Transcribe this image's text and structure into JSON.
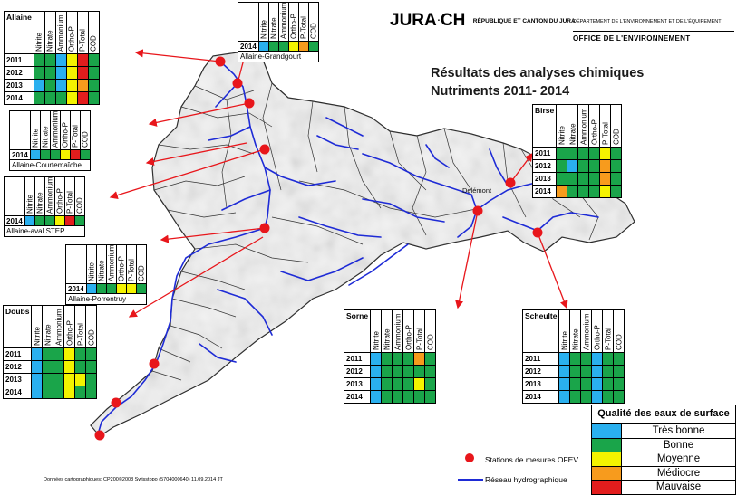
{
  "header": {
    "logo_jura": "JURA",
    "logo_ch": "CH",
    "republique": "RÉPUBLIQUE ET CANTON DU JURA",
    "department": "DÉPARTEMENT DE L'ENVIRONNEMENT ET DE L'ÉQUIPEMENT",
    "office": "OFFICE DE L'ENVIRONNEMENT"
  },
  "title": {
    "line1": "Résultats des analyses chimiques",
    "line2": "Nutriments 2011- 2014"
  },
  "map": {
    "town_label": "Delémont",
    "station_color": "#e8161b",
    "river_color": "#1e2bd6"
  },
  "columns": [
    "Nitrite",
    "Nitrate",
    "Ammonium",
    "Ortho-P",
    "P-Total",
    "COD"
  ],
  "colors": {
    "B": "#2ab0ef",
    "G": "#1aa54a",
    "Y": "#f4f300",
    "O": "#f79b1d",
    "R": "#e31d1d",
    "W": "#ffffff"
  },
  "tables": {
    "allaine": {
      "name": "Allaine",
      "rows": [
        {
          "year": "2011",
          "cells": [
            "G",
            "G",
            "B",
            "Y",
            "R",
            "G"
          ]
        },
        {
          "year": "2012",
          "cells": [
            "G",
            "G",
            "B",
            "Y",
            "R",
            "G"
          ]
        },
        {
          "year": "2013",
          "cells": [
            "B",
            "G",
            "B",
            "Y",
            "O",
            "G"
          ]
        },
        {
          "year": "2014",
          "cells": [
            "G",
            "G",
            "G",
            "Y",
            "R",
            "G"
          ]
        }
      ]
    },
    "grandgourt": {
      "name": "Allaine-Grandgourt",
      "rows": [
        {
          "year": "2014",
          "cells": [
            "B",
            "G",
            "G",
            "Y",
            "O",
            "G"
          ]
        }
      ]
    },
    "courtemaiche": {
      "name": "Allaine-Courtemaîche",
      "rows": [
        {
          "year": "2014",
          "cells": [
            "B",
            "G",
            "G",
            "Y",
            "R",
            "G"
          ]
        }
      ]
    },
    "avalstep": {
      "name": "Allaine-aval STEP",
      "rows": [
        {
          "year": "2014",
          "cells": [
            "B",
            "G",
            "G",
            "Y",
            "R",
            "G"
          ]
        }
      ]
    },
    "porrentruy": {
      "name": "Allaine-Porrentruy",
      "rows": [
        {
          "year": "2014",
          "cells": [
            "B",
            "G",
            "G",
            "Y",
            "Y",
            "G"
          ]
        }
      ]
    },
    "birse": {
      "name": "Birse",
      "rows": [
        {
          "year": "2011",
          "cells": [
            "G",
            "G",
            "G",
            "G",
            "Y",
            "G"
          ]
        },
        {
          "year": "2012",
          "cells": [
            "G",
            "B",
            "G",
            "G",
            "O",
            "G"
          ]
        },
        {
          "year": "2013",
          "cells": [
            "G",
            "G",
            "G",
            "G",
            "O",
            "G"
          ]
        },
        {
          "year": "2014",
          "cells": [
            "O",
            "G",
            "G",
            "G",
            "Y",
            "G"
          ]
        }
      ]
    },
    "doubs": {
      "name": "Doubs",
      "rows": [
        {
          "year": "2011",
          "cells": [
            "B",
            "G",
            "G",
            "Y",
            "G",
            "G"
          ]
        },
        {
          "year": "2012",
          "cells": [
            "B",
            "G",
            "G",
            "Y",
            "G",
            "G"
          ]
        },
        {
          "year": "2013",
          "cells": [
            "B",
            "G",
            "G",
            "Y",
            "Y",
            "G"
          ]
        },
        {
          "year": "2014",
          "cells": [
            "B",
            "G",
            "G",
            "Y",
            "G",
            "G"
          ]
        }
      ]
    },
    "sorne": {
      "name": "Sorne",
      "rows": [
        {
          "year": "2011",
          "cells": [
            "B",
            "G",
            "G",
            "G",
            "O",
            "G"
          ]
        },
        {
          "year": "2012",
          "cells": [
            "B",
            "G",
            "G",
            "G",
            "G",
            "G"
          ]
        },
        {
          "year": "2013",
          "cells": [
            "B",
            "G",
            "G",
            "G",
            "Y",
            "G"
          ]
        },
        {
          "year": "2014",
          "cells": [
            "B",
            "G",
            "G",
            "G",
            "G",
            "G"
          ]
        }
      ]
    },
    "scheulte": {
      "name": "Scheulte",
      "rows": [
        {
          "year": "2011",
          "cells": [
            "B",
            "G",
            "G",
            "B",
            "G",
            "G"
          ]
        },
        {
          "year": "2012",
          "cells": [
            "B",
            "G",
            "G",
            "B",
            "G",
            "G"
          ]
        },
        {
          "year": "2013",
          "cells": [
            "B",
            "G",
            "G",
            "B",
            "G",
            "G"
          ]
        },
        {
          "year": "2014",
          "cells": [
            "B",
            "G",
            "G",
            "B",
            "G",
            "G"
          ]
        }
      ]
    }
  },
  "legend": {
    "title": "Qualité des eaux de surface",
    "items": [
      {
        "label": "Très bonne",
        "color": "#2ab0ef"
      },
      {
        "label": "Bonne",
        "color": "#1aa54a"
      },
      {
        "label": "Moyenne",
        "color": "#f4f300"
      },
      {
        "label": "Médiocre",
        "color": "#f79b1d"
      },
      {
        "label": "Mauvaise",
        "color": "#e31d1d"
      }
    ]
  },
  "keys": {
    "stations": "Stations de mesures OFEV",
    "network": "Réseau hydrographique"
  },
  "credit": "Données cartographiques: CP200©2008 Swisstopo (5704000640) 11.09.2014 JT"
}
